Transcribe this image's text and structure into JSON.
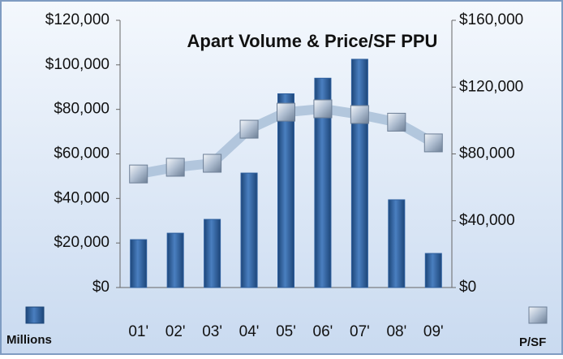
{
  "chart_data": {
    "type": "bar_line",
    "title": "Apart Volume & Price/SF PPU",
    "categories": [
      "01'",
      "02'",
      "03'",
      "04'",
      "05'",
      "06'",
      "07'",
      "08'",
      "09'"
    ],
    "series": [
      {
        "name": "Millions",
        "color": "#2e5f9e",
        "type": "bar",
        "axis": "y",
        "values": [
          21500,
          24400,
          30600,
          51400,
          87000,
          94000,
          102500,
          39400,
          15300
        ]
      },
      {
        "name": "P/SF",
        "color": "#a9bfd8",
        "type": "line",
        "axis": "y2",
        "values": [
          68000,
          72000,
          74400,
          94800,
          105000,
          107000,
          103600,
          99000,
          86600
        ]
      }
    ],
    "ylim": [
      0,
      120000
    ],
    "yticks": [
      {
        "value": 0,
        "label": "$0"
      },
      {
        "value": 20000,
        "label": "$20,000"
      },
      {
        "value": 40000,
        "label": "$40,000"
      },
      {
        "value": 60000,
        "label": "$60,000"
      },
      {
        "value": 80000,
        "label": "$80,000"
      },
      {
        "value": 100000,
        "label": "$100,000"
      },
      {
        "value": 120000,
        "label": "$120,000"
      }
    ],
    "y2lim": [
      0,
      160000
    ],
    "y2ticks": [
      {
        "value": 0,
        "label": "$0"
      },
      {
        "value": 40000,
        "label": "$40,000"
      },
      {
        "value": 80000,
        "label": "$80,000"
      },
      {
        "value": 120000,
        "label": "$120,000"
      },
      {
        "value": 160000,
        "label": "$160,000"
      }
    ],
    "grid": false
  }
}
